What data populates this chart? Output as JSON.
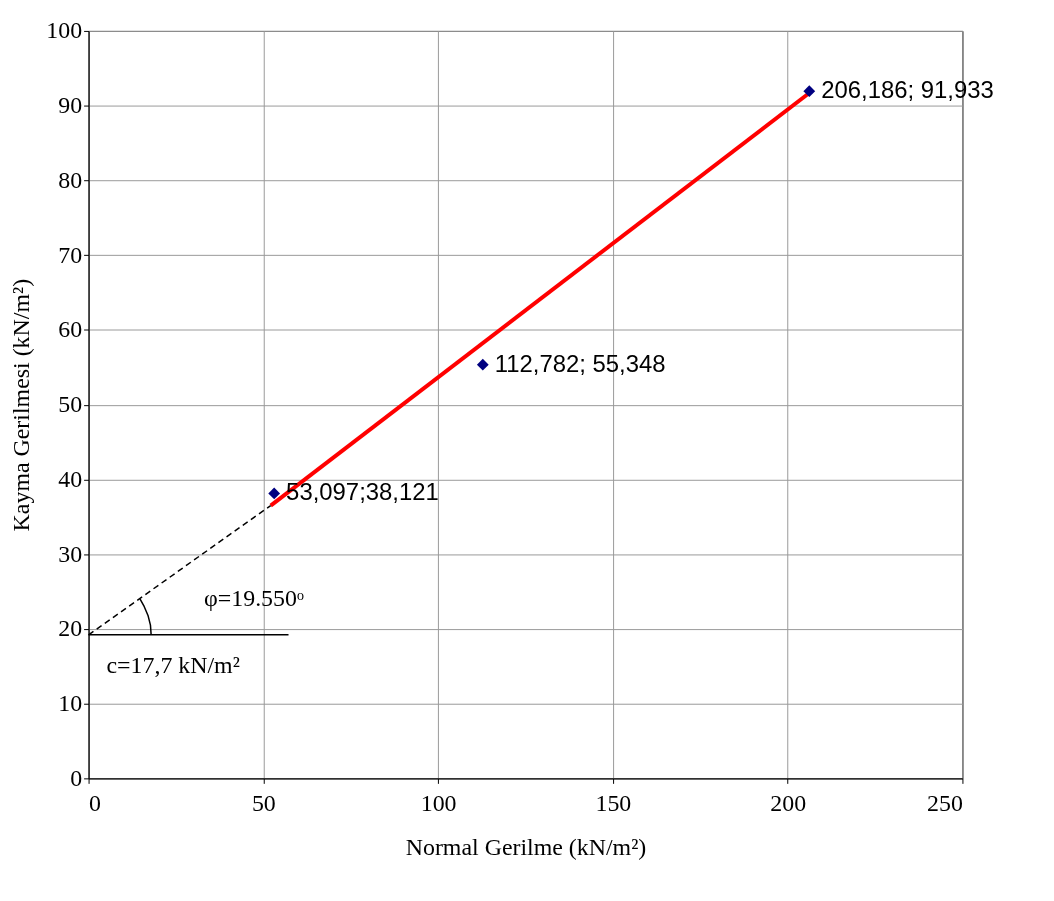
{
  "chart_data": {
    "type": "scatter",
    "xlabel": "Normal Gerilme (kN/m²)",
    "ylabel": "Kayma Gerilmesi (kN/m²)",
    "xlim": [
      0,
      250
    ],
    "ylim": [
      0,
      100
    ],
    "xticks": [
      0,
      50,
      100,
      150,
      200,
      250
    ],
    "yticks": [
      0,
      10,
      20,
      30,
      40,
      50,
      60,
      70,
      80,
      90,
      100
    ],
    "grid": true,
    "series": [
      {
        "type": "line",
        "color": "#ff0000",
        "line_style": "solid",
        "marker": "none",
        "x": [
          52.1,
          205.9
        ],
        "values": [
          36.5,
          91.6
        ]
      },
      {
        "type": "line",
        "color": "#000000",
        "line_style": "dashed",
        "marker": "none",
        "x": [
          0,
          52.1
        ],
        "values": [
          19.2,
          36.5
        ]
      },
      {
        "type": "line",
        "color": "#000000",
        "line_style": "solid",
        "marker": "none",
        "x": [
          0,
          57.2
        ],
        "values": [
          19.2,
          19.2
        ]
      },
      {
        "type": "line",
        "color": "#000000",
        "line_style": "solid",
        "marker": "none",
        "x": [
          17.9,
          17.7,
          17.0,
          15.9,
          14.7
        ],
        "values": [
          19.2,
          20.5,
          21.8,
          23.0,
          24.0
        ]
      },
      {
        "color": "#000080",
        "marker": "diamond",
        "x": [
          53.097,
          112.782,
          206.186
        ],
        "values": [
          38.121,
          55.348,
          91.933
        ]
      }
    ],
    "annotations": [
      {
        "text": "53,097;38,121",
        "x": 53.097,
        "y": 38.121
      },
      {
        "text": "112,782; 55,348",
        "x": 112.782,
        "y": 55.348
      },
      {
        "text": "206,186; 91,933",
        "x": 206.186,
        "y": 91.933
      },
      "φ=19.550ᵒ",
      "c=17,7 kN/m²"
    ]
  }
}
